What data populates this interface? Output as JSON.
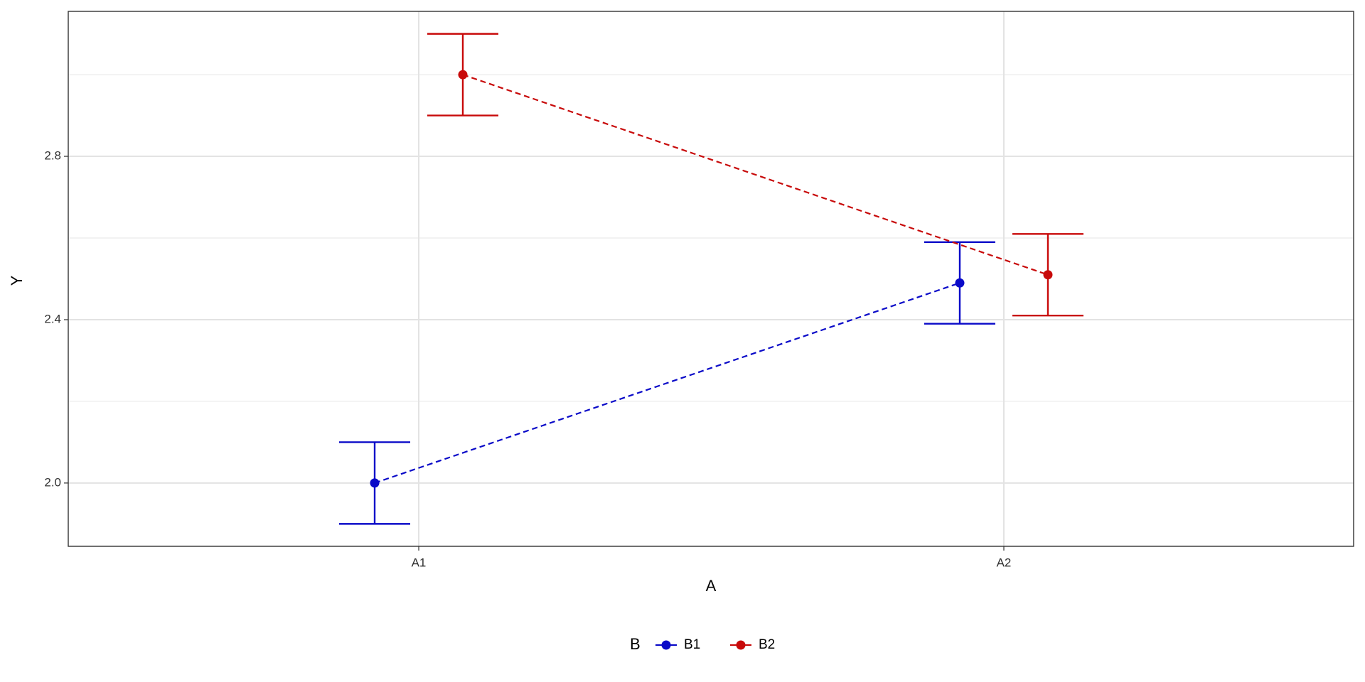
{
  "chart_data": {
    "type": "errorbar-line",
    "x_label": "A",
    "y_label": "Y",
    "legend_title": "B",
    "categories": [
      "A1",
      "A2"
    ],
    "series": [
      {
        "name": "B1",
        "color": "#0a0ac8",
        "values": [
          2.0,
          2.49
        ],
        "errors": [
          0.1,
          0.1
        ]
      },
      {
        "name": "B2",
        "color": "#c80a0a",
        "values": [
          3.0,
          2.51
        ],
        "errors": [
          0.1,
          0.1
        ]
      }
    ],
    "ylim": [
      1.845,
      3.155
    ],
    "yticks": [
      {
        "value": 2.0,
        "label": "2.0"
      },
      {
        "value": 2.4,
        "label": "2.4"
      },
      {
        "value": 2.8,
        "label": "2.8"
      }
    ],
    "y_minor_grid": [
      2.2,
      2.6,
      3.0
    ],
    "grid": true,
    "line_style": "dashed",
    "legend_position": "bottom"
  }
}
